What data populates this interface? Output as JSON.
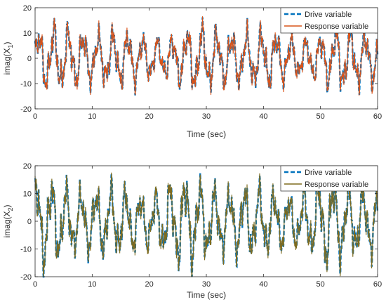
{
  "chart_data": [
    {
      "type": "line",
      "xlabel": "Time (sec)",
      "ylabel_base": "imag(X",
      "ylabel_sub": "1",
      "ylabel_close": ")",
      "xlim": [
        0,
        60
      ],
      "ylim": [
        -20,
        20
      ],
      "xticks": [
        "0",
        "10",
        "20",
        "30",
        "40",
        "50",
        "60"
      ],
      "yticks": [
        "20",
        "10",
        "0",
        "-10",
        "-20"
      ],
      "legend_position": "top-right",
      "grid": false,
      "series": [
        {
          "name": "Drive variable",
          "color": "#0072BD",
          "style": "dashed"
        },
        {
          "name": "Response variable",
          "color": "#D95319",
          "style": "solid"
        }
      ],
      "signal": {
        "dominant_period_sec": 2.6,
        "min": -16,
        "max": 16
      }
    },
    {
      "type": "line",
      "xlabel": "Time (sec)",
      "ylabel_base": "imag(X",
      "ylabel_sub": "2",
      "ylabel_close": ")",
      "xlim": [
        0,
        60
      ],
      "ylim": [
        -20,
        20
      ],
      "xticks": [
        "0",
        "10",
        "20",
        "30",
        "40",
        "50",
        "60"
      ],
      "yticks": [
        "20",
        "10",
        "0",
        "-10",
        "-20"
      ],
      "legend_position": "top-right",
      "grid": false,
      "series": [
        {
          "name": "Drive variable",
          "color": "#0072BD",
          "style": "dashed"
        },
        {
          "name": "Response variable",
          "color": "#7E6B1F",
          "style": "solid"
        }
      ],
      "signal": {
        "dominant_period_sec": 2.6,
        "min": -19,
        "max": 19
      }
    }
  ]
}
